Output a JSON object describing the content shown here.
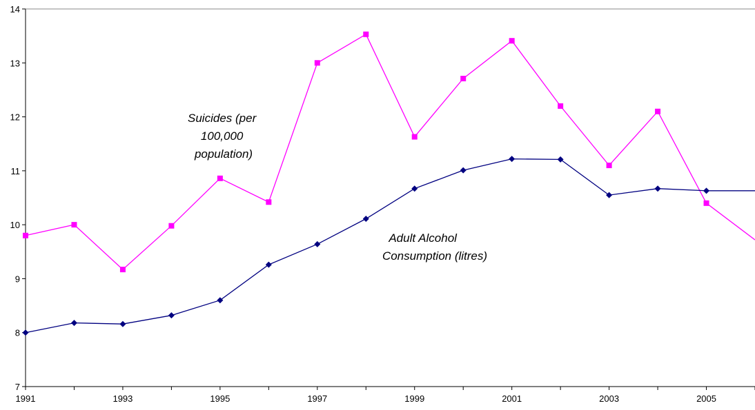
{
  "chart_data": {
    "type": "line",
    "x": [
      1991,
      1992,
      1993,
      1994,
      1995,
      1996,
      1997,
      1998,
      1999,
      2000,
      2001,
      2002,
      2003,
      2004,
      2005,
      2006
    ],
    "x_tick_labels": [
      "1991",
      "1993",
      "1995",
      "1997",
      "1999",
      "2001",
      "2003",
      "2005"
    ],
    "y_tick_labels": [
      "7",
      "8",
      "9",
      "10",
      "11",
      "12",
      "13",
      "14"
    ],
    "ylim": [
      7,
      14
    ],
    "grid": false,
    "series": [
      {
        "name": "Suicides (per 100,000 population)",
        "color": "#ff00ff",
        "marker": "square",
        "values": [
          9.8,
          10.0,
          9.17,
          9.98,
          10.86,
          10.42,
          13.0,
          13.53,
          11.63,
          12.71,
          13.41,
          12.2,
          11.1,
          12.1,
          10.4,
          9.72
        ]
      },
      {
        "name": "Adult Alcohol Consumption (litres)",
        "color": "#000080",
        "marker": "diamond",
        "values": [
          8.0,
          8.18,
          8.16,
          8.32,
          8.6,
          9.26,
          9.64,
          10.11,
          10.67,
          11.01,
          11.22,
          11.21,
          10.55,
          10.67,
          10.63,
          10.63
        ]
      }
    ],
    "annotations": [
      {
        "lines": [
          "Suicides (per",
          "100,000",
          "population)"
        ]
      },
      {
        "lines": [
          "Adult Alcohol",
          "Consumption (litres)"
        ]
      }
    ]
  }
}
